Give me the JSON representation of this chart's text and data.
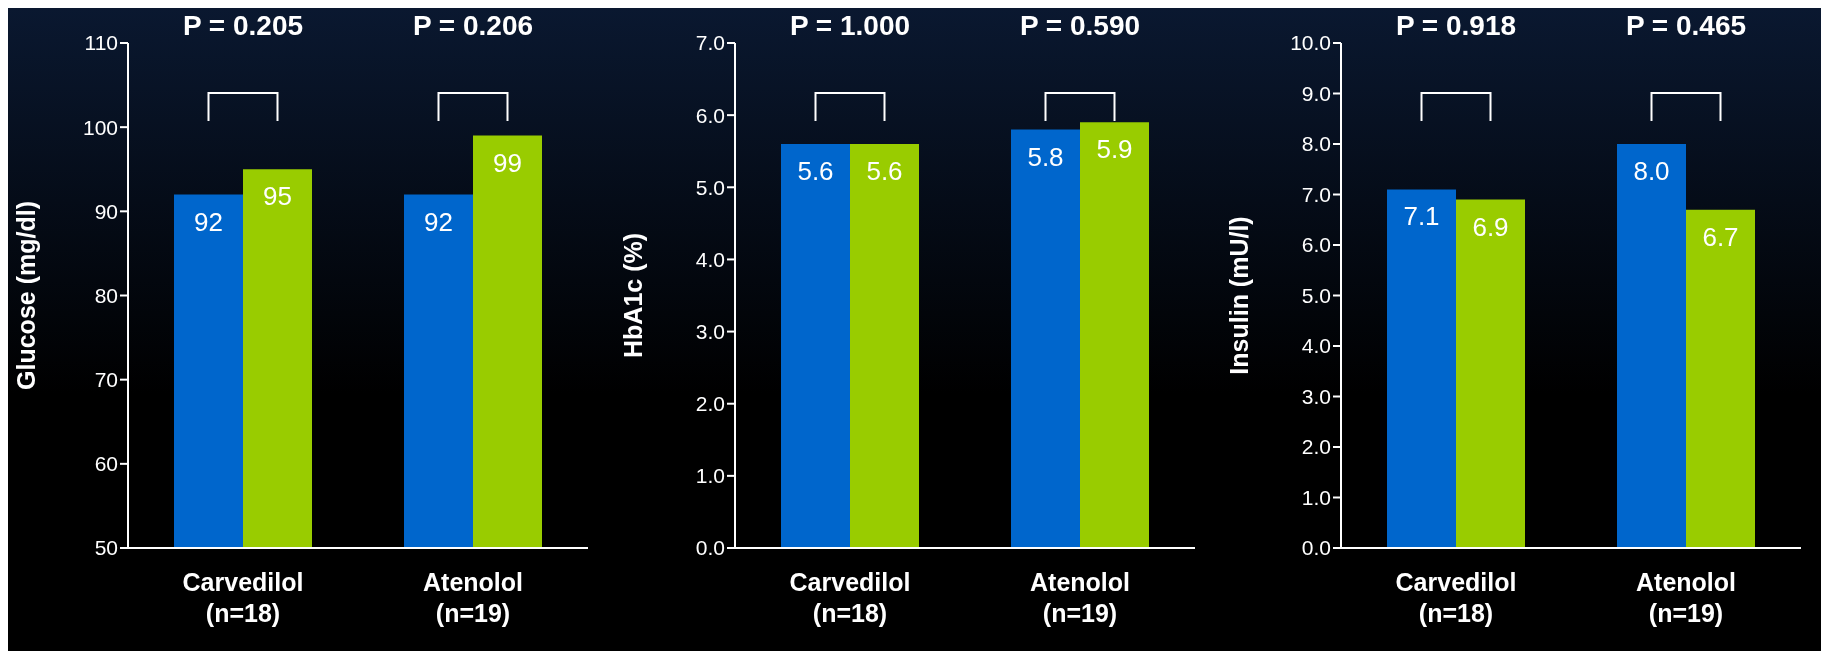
{
  "chart_data": [
    {
      "type": "bar",
      "ylabel": "Glucose (mg/dl)",
      "categories": [
        "Carvedilol (n=18)",
        "Atenolol (n=19)"
      ],
      "series": [
        {
          "color": "#0066cc",
          "values": [
            92,
            92
          ]
        },
        {
          "color": "#99cc00",
          "values": [
            95,
            99
          ]
        }
      ],
      "ylim": [
        50,
        110
      ],
      "yticks": [
        50,
        60,
        70,
        80,
        90,
        100,
        110
      ],
      "grid": false,
      "legend": false,
      "data_labels": true,
      "annotations": [
        "P = 0.205",
        "P = 0.206"
      ]
    },
    {
      "type": "bar",
      "ylabel": "HbA1c (%)",
      "categories": [
        "Carvedilol (n=18)",
        "Atenolol (n=19)"
      ],
      "series": [
        {
          "color": "#0066cc",
          "values": [
            5.6,
            5.8
          ],
          "value_labels": [
            "5.6",
            "5.8"
          ]
        },
        {
          "color": "#99cc00",
          "values": [
            5.6,
            5.9
          ],
          "value_labels": [
            "5.6",
            "5.9"
          ]
        }
      ],
      "ylim": [
        0,
        7
      ],
      "yticks": [
        {
          "value": 0,
          "label": "0.0"
        },
        {
          "value": 1,
          "label": "1.0"
        },
        {
          "value": 2,
          "label": "2.0"
        },
        {
          "value": 3,
          "label": "3.0"
        },
        {
          "value": 4,
          "label": "4.0"
        },
        {
          "value": 5,
          "label": "5.0"
        },
        {
          "value": 6,
          "label": "6.0"
        },
        {
          "value": 7,
          "label": "7.0"
        }
      ],
      "grid": false,
      "legend": false,
      "annotations": [
        "P = 1.000",
        "P = 0.590"
      ]
    },
    {
      "type": "bar",
      "ylabel": "Insulin (mU/l)",
      "categories": [
        "Carvedilol (n=18)",
        "Atenolol (n=19)"
      ],
      "series": [
        {
          "color": "#0066cc",
          "values": [
            7.1,
            8.0
          ],
          "value_labels": [
            "7.1",
            "8.0"
          ]
        },
        {
          "color": "#99cc00",
          "values": [
            6.9,
            6.7
          ],
          "value_labels": [
            "6.9",
            "6.7"
          ]
        }
      ],
      "ylim": [
        0,
        10
      ],
      "yticks": [
        {
          "value": 0,
          "label": "0.0"
        },
        {
          "value": 1,
          "label": "1.0"
        },
        {
          "value": 2,
          "label": "2.0"
        },
        {
          "value": 3,
          "label": "3.0"
        },
        {
          "value": 4,
          "label": "4.0"
        },
        {
          "value": 5,
          "label": "5.0"
        },
        {
          "value": 6,
          "label": "6.0"
        },
        {
          "value": 7,
          "label": "7.0"
        },
        {
          "value": 8,
          "label": "8.0"
        },
        {
          "value": 9,
          "label": "9.0"
        },
        {
          "value": 10,
          "label": "10.0"
        }
      ],
      "grid": false,
      "legend": false,
      "annotations": [
        "P = 0.918",
        "P = 0.465"
      ]
    }
  ]
}
